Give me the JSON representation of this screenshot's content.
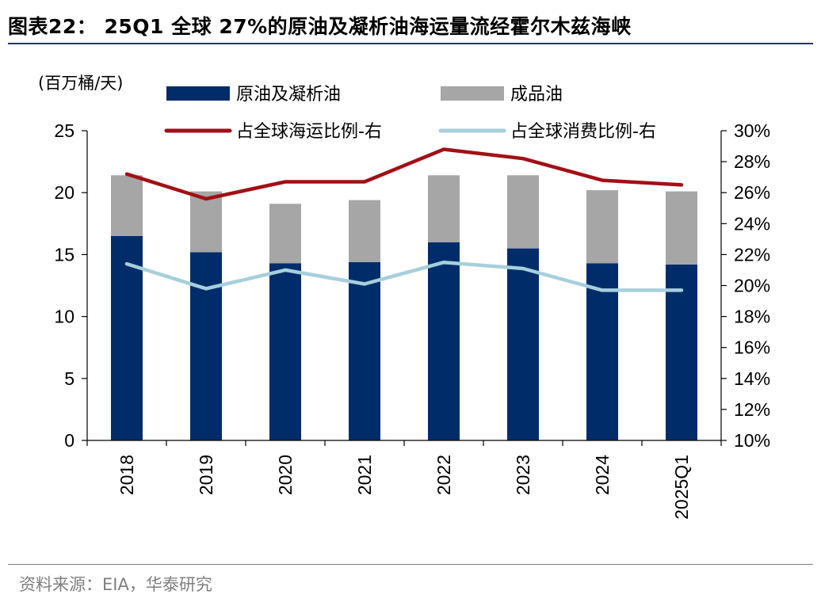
{
  "header": {
    "title": "图表22： 25Q1 全球 27%的原油及凝析油海运量流经霍尔木兹海峡"
  },
  "footer": {
    "source": "资料来源：EIA，华泰研究"
  },
  "colors": {
    "crude": "#002d6a",
    "products": "#a6a6a6",
    "seaborne_share": "#a30f16",
    "consumption_share": "#a6cfdc",
    "title_rule": "#1f3864",
    "source_text": "#7f7f7f"
  },
  "chart_data": {
    "type": "bar",
    "stacked": true,
    "categories": [
      "2018",
      "2019",
      "2020",
      "2021",
      "2022",
      "2023",
      "2024",
      "2025Q1"
    ],
    "y_left": {
      "unit_label": "(百万桶/天)",
      "lim": [
        0,
        25
      ],
      "ticks": [
        "0",
        "5",
        "10",
        "15",
        "20",
        "25"
      ]
    },
    "y_right": {
      "lim": [
        10,
        30
      ],
      "ticks": [
        "10%",
        "12%",
        "14%",
        "16%",
        "18%",
        "20%",
        "22%",
        "24%",
        "26%",
        "28%",
        "30%"
      ]
    },
    "bars": [
      {
        "name": "原油及凝析油",
        "values": [
          16.5,
          15.2,
          14.3,
          14.4,
          16.0,
          15.5,
          14.3,
          14.2
        ]
      },
      {
        "name": "成品油",
        "values": [
          4.9,
          4.9,
          4.8,
          5.0,
          5.4,
          5.9,
          5.9,
          5.9
        ]
      }
    ],
    "lines": [
      {
        "name": "占全球海运比例-右",
        "axis": "right",
        "values": [
          27.2,
          25.6,
          26.7,
          26.7,
          28.8,
          28.2,
          26.8,
          26.5
        ]
      },
      {
        "name": "占全球消费比例-右",
        "axis": "right",
        "values": [
          21.4,
          19.8,
          21.0,
          20.1,
          21.5,
          21.1,
          19.7,
          19.7
        ]
      }
    ],
    "legend_position": "top",
    "grid": false
  }
}
